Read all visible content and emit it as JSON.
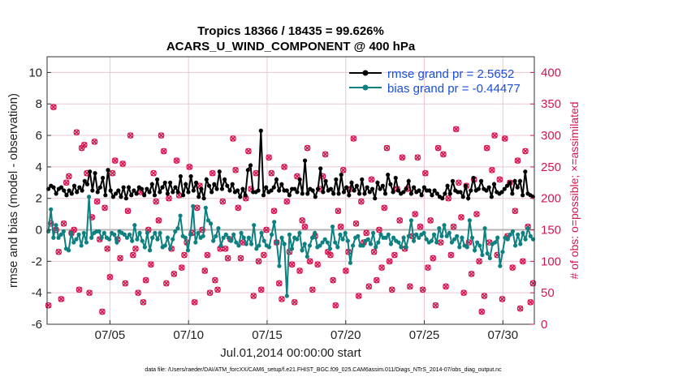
{
  "chart_data": {
    "type": "line",
    "title": "Tropics 18366 / 18435 = 99.626%",
    "subtitle": "ACARS_U_WIND_COMPONENT @ 400 hPa",
    "xlabel": "Jul.01,2014 00:00:00 start",
    "ylabel": "rmse and bias (model - observation)",
    "y2label": "# of obs: o=possible; ×=assimilated",
    "footnote": "data file: /Users/raeder/DAI/ATM_forcXX/CAM6_setup/f.e21.FHIST_BGC.f09_025.CAM6assim.011/Diags_NTrS_2014-07/obs_diag_output.nc",
    "xlim": [
      1,
      32
    ],
    "ylim": [
      -6,
      11
    ],
    "y2lim": [
      0,
      425
    ],
    "x_ticks": [
      5,
      10,
      15,
      20,
      25,
      30
    ],
    "x_tick_labels": [
      "07/05",
      "07/10",
      "07/15",
      "07/20",
      "07/25",
      "07/30"
    ],
    "y_ticks": [
      -6,
      -4,
      -2,
      0,
      2,
      4,
      6,
      8,
      10
    ],
    "y_tick_labels": [
      "-6",
      "-4",
      "-2",
      "0",
      "2",
      "4",
      "6",
      "8",
      "10"
    ],
    "y2_ticks": [
      0,
      50,
      100,
      150,
      200,
      250,
      300,
      350,
      400
    ],
    "y2_tick_labels": [
      "0",
      "50",
      "100",
      "150",
      "200",
      "250",
      "300",
      "350",
      "400"
    ],
    "colors": {
      "rmse": "#000000",
      "bias": "#0e8080",
      "obs": "#d6154f",
      "zero": "#b3b3b3",
      "grid": "#e8c8d8"
    },
    "series": [
      {
        "name": "rmse grand pr = 2.5652",
        "values": [
          2.6,
          2.8,
          2.7,
          2.3,
          2.6,
          2.7,
          2.5,
          2.2,
          2.5,
          2.3,
          2.8,
          2.4,
          2.7,
          2.5,
          3.1,
          2.9,
          3.7,
          2.5,
          3.6,
          2.4,
          2.7,
          3.3,
          2.2,
          3.8,
          2.5,
          2.1,
          2.3,
          2.5,
          2.1,
          2.7,
          2.0,
          2.7,
          2.2,
          2.5,
          2.3,
          2.7,
          2.6,
          2.2,
          2.6,
          2.4,
          2.9,
          2.2,
          3.2,
          2.4,
          2.7,
          3.0,
          2.3,
          3.0,
          2.4,
          2.7,
          2.4,
          3.4,
          2.2,
          2.9,
          2.4,
          3.4,
          2.5,
          3.0,
          2.1,
          2.6,
          2.0,
          3.2,
          2.8,
          2.4,
          2.9,
          2.6,
          3.7,
          2.6,
          3.2,
          2.8,
          2.5,
          2.9,
          2.4,
          2.5,
          2.1,
          2.6,
          2.2,
          3.8,
          4.1,
          2.4,
          2.4,
          2.5,
          6.3,
          2.2,
          2.7,
          2.4,
          2.5,
          2.7,
          3.2,
          2.5,
          2.9,
          2.5,
          2.5,
          2.2,
          2.6,
          2.6,
          2.4,
          3.2,
          2.3,
          4.4,
          2.3,
          2.6,
          2.5,
          2.1,
          2.6,
          3.9,
          2.4,
          3.1,
          2.5,
          2.6,
          2.3,
          3.2,
          2.3,
          3.5,
          2.4,
          2.7,
          2.2,
          3.0,
          2.5,
          2.8,
          2.3,
          3.2,
          2.3,
          2.7,
          2.4,
          2.6,
          2.0,
          3.0,
          2.6,
          2.8,
          2.3,
          3.5,
          2.9,
          2.4,
          3.3,
          2.5,
          2.3,
          2.4,
          2.6,
          3.1,
          2.3,
          2.7,
          2.4,
          2.5,
          2.2,
          2.7,
          2.5,
          2.5,
          2.2,
          2.5,
          2.3,
          2.1,
          2.0,
          2.3,
          2.8,
          2.3,
          3.1,
          2.5,
          2.4,
          2.4,
          2.1,
          2.8,
          2.0,
          2.5,
          3.3,
          2.5,
          2.6,
          3.1,
          2.6,
          2.5,
          2.7,
          2.1,
          2.9,
          2.4,
          2.3,
          2.4,
          2.6,
          2.8,
          3.0,
          2.3,
          3.1,
          2.7,
          3.1,
          2.2,
          3.7,
          2.3,
          2.2,
          2.1
        ]
      },
      {
        "name": "bias grand pr = -0.44477",
        "values": [
          -0.1,
          1.3,
          -0.5,
          0.3,
          -0.5,
          -0.3,
          -0.1,
          -1.2,
          -1.3,
          -0.2,
          -0.8,
          -0.6,
          -0.3,
          -1.0,
          -0.2,
          -0.8,
          2.1,
          -0.5,
          -0.2,
          -0.1,
          -0.1,
          -0.5,
          -0.2,
          -0.5,
          -0.6,
          -0.2,
          -0.3,
          -0.8,
          -0.1,
          -0.2,
          -0.3,
          -0.5,
          -0.3,
          -0.7,
          0.3,
          -0.6,
          -0.2,
          -0.7,
          -1.1,
          -0.2,
          -1.3,
          -0.5,
          -0.2,
          -0.6,
          -0.2,
          -1.1,
          -1.0,
          -0.5,
          -1.2,
          -0.6,
          -0.1,
          0.1,
          0.9,
          -0.4,
          -0.5,
          -1.3,
          -0.3,
          1.5,
          -0.8,
          -0.2,
          -0.5,
          -0.4,
          1.4,
          0.6,
          0.4,
          -0.7,
          -0.4,
          0.1,
          -1.0,
          -0.5,
          -0.3,
          -0.5,
          -0.7,
          -0.3,
          -0.8,
          -1.0,
          -0.2,
          -0.5,
          -0.9,
          -0.5,
          -0.9,
          0.3,
          -1.2,
          -1.0,
          -0.2,
          -0.7,
          -1.0,
          -1.1,
          -0.3,
          0.5,
          -0.8,
          -2.3,
          -0.5,
          -0.9,
          -4.2,
          -0.3,
          -1.2,
          -0.5,
          -0.6,
          -0.2,
          -1.3,
          -0.9,
          -1.7,
          -1.0,
          -0.5,
          -0.2,
          -1.1,
          -1.0,
          -0.8,
          -0.6,
          -0.8,
          -1.2,
          0.2,
          -0.8,
          -1.1,
          -0.3,
          -0.6,
          -0.2,
          -0.7,
          -2.1,
          -1.0,
          -0.5,
          -0.4,
          -1.0,
          -1.0,
          -0.7,
          -0.6,
          -0.9,
          -0.2,
          -1.1,
          -0.8,
          -0.3,
          -0.5,
          -0.5,
          -0.3,
          -0.9,
          -0.5,
          -0.7,
          -0.8,
          -1.1,
          -0.5,
          -1.1,
          -0.4,
          0.6,
          -0.7,
          -0.3,
          -0.5,
          -0.3,
          -0.2,
          -0.6,
          -0.8,
          -0.7,
          -0.3,
          -0.8,
          0.1,
          -0.4,
          0.3,
          -0.4,
          -0.2,
          -0.8,
          -0.6,
          -0.4,
          -1.1,
          -0.5,
          -1.0,
          -1.1,
          0.6,
          -0.5,
          -1.3,
          -0.8,
          -1.0,
          -1.6,
          0.1,
          -1.5,
          -1.8,
          -0.9,
          -0.8,
          -0.5,
          -2.3,
          -1.4,
          -0.5,
          -0.6,
          -0.3,
          -0.1,
          -1.0,
          -0.3,
          -0.9,
          -0.2,
          -0.6,
          0.1,
          -0.4,
          -0.6
        ]
      }
    ],
    "obs_counts": [
      30,
      160,
      345,
      150,
      115,
      40,
      160,
      225,
      235,
      145,
      150,
      305,
      55,
      280,
      285,
      240,
      50,
      170,
      290,
      195,
      135,
      20,
      185,
      120,
      75,
      240,
      260,
      135,
      105,
      255,
      65,
      180,
      300,
      110,
      120,
      50,
      210,
      35,
      70,
      150,
      95,
      240,
      195,
      165,
      300,
      275,
      65,
      200,
      120,
      80,
      260,
      205,
      90,
      110,
      130,
      250,
      145,
      35,
      185,
      220,
      150,
      85,
      110,
      50,
      240,
      70,
      55,
      120,
      195,
      120,
      105,
      135,
      295,
      245,
      185,
      105,
      130,
      200,
      275,
      215,
      45,
      240,
      100,
      55,
      110,
      150,
      265,
      240,
      180,
      130,
      65,
      40,
      250,
      195,
      115,
      95,
      35,
      235,
      85,
      165,
      155,
      280,
      100,
      55,
      140,
      95,
      215,
      235,
      270,
      115,
      110,
      70,
      30,
      180,
      155,
      245,
      85,
      115,
      215,
      295,
      160,
      45,
      195,
      130,
      145,
      60,
      230,
      115,
      70,
      150,
      90,
      185,
      280,
      100,
      55,
      110,
      215,
      165,
      265,
      120,
      215,
      60,
      140,
      175,
      265,
      155,
      55,
      240,
      90,
      165,
      105,
      30,
      280,
      130,
      270,
      60,
      200,
      110,
      155,
      310,
      225,
      170,
      50,
      220,
      130,
      80,
      230,
      175,
      100,
      20,
      45,
      280,
      130,
      245,
      300,
      110,
      230,
      40,
      295,
      140,
      225,
      90,
      180,
      260,
      25,
      100,
      275,
      155,
      35,
      65
    ],
    "legend": {
      "location": "top-right",
      "entries": [
        "rmse grand pr = 2.5652",
        "bias grand pr = -0.44477"
      ]
    }
  }
}
